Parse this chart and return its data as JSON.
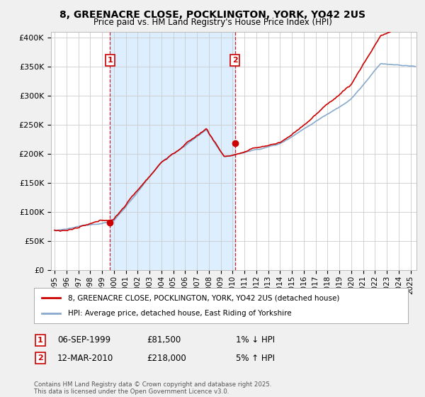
{
  "title": "8, GREENACRE CLOSE, POCKLINGTON, YORK, YO42 2US",
  "subtitle": "Price paid vs. HM Land Registry's House Price Index (HPI)",
  "ylim": [
    0,
    410000
  ],
  "xlim": [
    1994.7,
    2025.5
  ],
  "yticks": [
    0,
    50000,
    100000,
    150000,
    200000,
    250000,
    300000,
    350000,
    400000
  ],
  "ytick_labels": [
    "£0",
    "£50K",
    "£100K",
    "£150K",
    "£200K",
    "£250K",
    "£300K",
    "£350K",
    "£400K"
  ],
  "background_color": "#f0f0f0",
  "plot_bg_color": "#ffffff",
  "shade_color": "#ddeeff",
  "grid_color": "#cccccc",
  "sale1_date": 1999.68,
  "sale1_price": 81500,
  "sale1_label": "1",
  "sale2_date": 2010.19,
  "sale2_price": 218000,
  "sale2_label": "2",
  "legend_line1": "8, GREENACRE CLOSE, POCKLINGTON, YORK, YO42 2US (detached house)",
  "legend_line2": "HPI: Average price, detached house, East Riding of Yorkshire",
  "footer": "Contains HM Land Registry data © Crown copyright and database right 2025.\nThis data is licensed under the Open Government Licence v3.0.",
  "red_color": "#cc0000",
  "blue_color": "#88aacc",
  "sale1_row": "06-SEP-1999",
  "sale1_price_str": "£81,500",
  "sale1_pct": "1% ↓ HPI",
  "sale2_row": "12-MAR-2010",
  "sale2_price_str": "£218,000",
  "sale2_pct": "5% ↑ HPI"
}
